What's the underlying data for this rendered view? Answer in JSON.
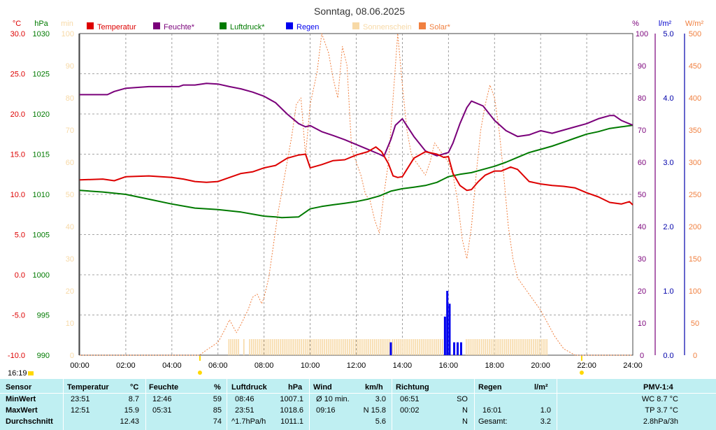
{
  "title": "Sonntag, 08.06.2025",
  "colors": {
    "temperature": "#dd0000",
    "humidity": "#7a007a",
    "pressure": "#007a00",
    "rain": "#0000ee",
    "sunshine": "#f7d9a6",
    "solar": "#f08040",
    "grid": "#888888",
    "stats_bg": "#bfeff2"
  },
  "legend": [
    "Temperatur",
    "Feuchte*",
    "Luftdruck*",
    "Regen",
    "Sonnenschein",
    "Solar*"
  ],
  "axes": {
    "temp": {
      "unit": "°C",
      "ticks": [
        "30.0",
        "25.0",
        "20.0",
        "15.0",
        "10.0",
        "5.0",
        "0.0",
        "-5.0",
        "-10.0"
      ],
      "range": [
        -10,
        30
      ]
    },
    "press": {
      "unit": "hPa",
      "ticks": [
        "1030",
        "1025",
        "1020",
        "1015",
        "1010",
        "1005",
        "1000",
        "995",
        "990"
      ],
      "range": [
        990,
        1030
      ]
    },
    "sun": {
      "unit": "min",
      "ticks": [
        "100",
        "90",
        "80",
        "70",
        "60",
        "50",
        "40",
        "30",
        "20",
        "10",
        "0"
      ],
      "range": [
        0,
        100
      ]
    },
    "hum": {
      "unit": "%",
      "ticks": [
        "100",
        "90",
        "80",
        "70",
        "60",
        "50",
        "40",
        "30",
        "20",
        "10",
        "0"
      ],
      "range": [
        0,
        100
      ]
    },
    "rain": {
      "unit": "l/m²",
      "ticks": [
        "5.0",
        "4.0",
        "3.0",
        "2.0",
        "1.0",
        "0.0"
      ],
      "range": [
        0,
        5
      ]
    },
    "solar": {
      "unit": "W/m²",
      "ticks": [
        "500",
        "450",
        "400",
        "350",
        "300",
        "250",
        "200",
        "150",
        "100",
        "50",
        "0"
      ],
      "range": [
        0,
        500
      ]
    },
    "x": {
      "ticks": [
        "00:00",
        "02:00",
        "04:00",
        "06:00",
        "08:00",
        "10:00",
        "12:00",
        "14:00",
        "16:00",
        "18:00",
        "20:00",
        "22:00",
        "24:00"
      ],
      "range": [
        0,
        24
      ]
    }
  },
  "sunrise": "05:13",
  "sunset": "21:47",
  "current_time": "16:19",
  "chart_data": {
    "type": "line",
    "title": "Sonntag, 08.06.2025",
    "x_unit": "hour",
    "xlim": [
      0,
      24
    ],
    "grid": true,
    "legend_position": "top",
    "series": [
      {
        "name": "Temperatur",
        "axis": "temp",
        "style": "line",
        "x": [
          0,
          1,
          1.5,
          2,
          3,
          4,
          4.5,
          5,
          5.5,
          6,
          6.5,
          7,
          7.5,
          8,
          8.5,
          9,
          9.5,
          9.8,
          10,
          10.5,
          11,
          11.5,
          12,
          12.5,
          12.85,
          13.1,
          13.4,
          13.6,
          13.8,
          14,
          14.5,
          15,
          15.5,
          15.8,
          16,
          16.2,
          16.5,
          16.8,
          17,
          17.3,
          17.6,
          18,
          18.3,
          18.7,
          19,
          19.5,
          20,
          20.5,
          21,
          21.5,
          22,
          22.5,
          23,
          23.5,
          23.85,
          24
        ],
        "y": [
          11.8,
          11.9,
          11.7,
          12.2,
          12.3,
          12.1,
          11.9,
          11.6,
          11.5,
          11.6,
          12.1,
          12.6,
          12.8,
          13.3,
          13.6,
          14.5,
          14.9,
          15.0,
          13.3,
          13.7,
          14.2,
          14.3,
          14.9,
          15.3,
          15.9,
          15.3,
          13.8,
          12.3,
          12.1,
          12.2,
          14.5,
          15.3,
          15.0,
          14.6,
          14.7,
          12.6,
          11.1,
          10.5,
          10.6,
          11.6,
          12.4,
          12.9,
          12.9,
          13.4,
          13.1,
          11.6,
          11.3,
          11.1,
          11.0,
          10.8,
          10.2,
          9.7,
          9.0,
          8.8,
          9.1,
          8.7
        ]
      },
      {
        "name": "Feuchte*",
        "axis": "hum",
        "style": "line",
        "x": [
          0,
          1.2,
          1.5,
          2,
          3,
          4.3,
          4.5,
          5,
          5.5,
          6,
          6.5,
          7,
          7.5,
          8,
          8.5,
          9,
          9.5,
          9.8,
          10,
          10.5,
          11,
          11.5,
          12,
          12.5,
          13,
          13.2,
          13.5,
          13.7,
          14,
          14.5,
          15,
          15.5,
          16,
          16.2,
          16.5,
          16.8,
          17,
          17.5,
          18,
          18.5,
          19,
          19.5,
          20,
          20.5,
          21,
          21.5,
          22,
          22.5,
          23,
          23.2,
          23.5,
          24
        ],
        "y": [
          81,
          81,
          82,
          83,
          83.5,
          83.5,
          84,
          84,
          84.5,
          84.3,
          83.5,
          82.8,
          81.8,
          80.5,
          78.5,
          75,
          72,
          71,
          71.4,
          69.5,
          68.3,
          67,
          65.5,
          64,
          62.5,
          61.8,
          67,
          71.5,
          73.5,
          68,
          63.5,
          62,
          63,
          66,
          72,
          77,
          79,
          77.5,
          73,
          69.8,
          68,
          68.5,
          69.8,
          69,
          70,
          71,
          72,
          73.5,
          74.5,
          74.5,
          73,
          71.5
        ]
      },
      {
        "name": "Luftdruck*",
        "axis": "press",
        "style": "line",
        "x": [
          0,
          1,
          2,
          3,
          4,
          5,
          6,
          7,
          8,
          8.5,
          8.77,
          9.5,
          10,
          10.5,
          11,
          11.5,
          12,
          12.5,
          13,
          13.5,
          14,
          14.5,
          15,
          15.5,
          16,
          16.5,
          17,
          17.5,
          18,
          18.5,
          19,
          19.5,
          20,
          20.5,
          21,
          21.5,
          22,
          22.5,
          23,
          23.5,
          24
        ],
        "y": [
          1010.5,
          1010.3,
          1010.0,
          1009.4,
          1008.8,
          1008.3,
          1008.1,
          1007.8,
          1007.3,
          1007.2,
          1007.1,
          1007.2,
          1008.2,
          1008.5,
          1008.7,
          1008.9,
          1009.1,
          1009.4,
          1009.8,
          1010.4,
          1010.7,
          1010.9,
          1011.1,
          1011.5,
          1012.2,
          1012.5,
          1012.7,
          1013.1,
          1013.5,
          1014.0,
          1014.6,
          1015.2,
          1015.6,
          1016.0,
          1016.5,
          1017.0,
          1017.5,
          1017.8,
          1018.2,
          1018.4,
          1018.6
        ]
      },
      {
        "name": "Solar*",
        "axis": "solar",
        "style": "dashed",
        "x": [
          0,
          5.2,
          5.5,
          6,
          6.3,
          6.5,
          6.8,
          7,
          7.3,
          7.5,
          7.7,
          7.9,
          8,
          8.2,
          8.4,
          8.6,
          8.8,
          9,
          9.2,
          9.4,
          9.6,
          9.8,
          10,
          10.3,
          10.5,
          10.8,
          11,
          11.2,
          11.4,
          11.6,
          11.8,
          12,
          12.2,
          12.4,
          12.6,
          12.8,
          13,
          13.2,
          13.4,
          13.6,
          13.8,
          14,
          14.2,
          14.4,
          14.6,
          14.8,
          15,
          15.2,
          15.4,
          15.6,
          15.8,
          16,
          16.2,
          16.4,
          16.6,
          16.8,
          17,
          17.2,
          17.4,
          17.6,
          17.8,
          18,
          18.2,
          18.4,
          18.6,
          18.8,
          19,
          19.2,
          19.4,
          19.6,
          19.8,
          20,
          20.3,
          20.6,
          21,
          21.5,
          21.8,
          24
        ],
        "y": [
          0,
          0,
          8,
          20,
          40,
          55,
          35,
          48,
          70,
          90,
          95,
          80,
          90,
          120,
          170,
          220,
          260,
          300,
          340,
          390,
          400,
          310,
          390,
          440,
          500,
          470,
          430,
          400,
          480,
          450,
          320,
          300,
          280,
          250,
          240,
          210,
          190,
          250,
          300,
          400,
          500,
          420,
          350,
          310,
          300,
          290,
          280,
          300,
          330,
          320,
          310,
          300,
          280,
          240,
          180,
          150,
          200,
          280,
          350,
          390,
          420,
          400,
          350,
          280,
          200,
          150,
          120,
          110,
          100,
          90,
          80,
          70,
          50,
          30,
          10,
          0,
          0,
          0
        ]
      },
      {
        "name": "Regen",
        "axis": "rain",
        "style": "bar",
        "x": [
          13.5,
          15.85,
          15.95,
          16.05,
          16.25,
          16.4,
          16.55
        ],
        "y": [
          0.2,
          0.6,
          1.0,
          0.8,
          0.2,
          0.2,
          0.2
        ]
      },
      {
        "name": "Sonnenschein",
        "axis": "sun",
        "style": "bar",
        "x_ranges": [
          [
            6.45,
            6.9
          ],
          [
            7.1,
            7.15
          ],
          [
            7.35,
            13.45
          ],
          [
            13.55,
            15.75
          ],
          [
            16.75,
            20.3
          ]
        ],
        "y": 5
      }
    ]
  },
  "stats": {
    "headers": {
      "sensor": "Sensor",
      "temp": "Temperatur",
      "temp_unit": "°C",
      "hum": "Feuchte",
      "hum_unit": "%",
      "press": "Luftdruck",
      "press_unit": "hPa",
      "wind": "Wind",
      "wind_unit": "km/h",
      "dir": "Richtung",
      "rain": "Regen",
      "rain_unit": "l/m²",
      "pmv": "PMV-1:4"
    },
    "rows": [
      {
        "label": "MinWert",
        "temp_time": "23:51",
        "temp_val": "8.7",
        "hum_time": "12:46",
        "hum_val": "59",
        "press_time": "08:46",
        "press_val": "1007.1",
        "wind_time": "Ø 10 min.",
        "wind_val": "3.0",
        "dir_time": "06:51",
        "dir_val": "SO",
        "rain_time": "",
        "rain_val": "",
        "pmv": "WC 8.7 °C"
      },
      {
        "label": "MaxWert",
        "temp_time": "12:51",
        "temp_val": "15.9",
        "hum_time": "05:31",
        "hum_val": "85",
        "press_time": "23:51",
        "press_val": "1018.6",
        "wind_time": "09:16",
        "wind_val": "N 15.8",
        "dir_time": "00:02",
        "dir_val": "N",
        "rain_time": "16:01",
        "rain_val": "1.0",
        "pmv": "TP 3.7 °C"
      },
      {
        "label": "Durchschnitt",
        "temp_time": "",
        "temp_val": "12.43",
        "hum_time": "",
        "hum_val": "74",
        "press_time": "^1.7hPa/h",
        "press_val": "1011.1",
        "wind_time": "",
        "wind_val": "5.6",
        "dir_time": "",
        "dir_val": "N",
        "rain_time": "Gesamt:",
        "rain_val": "3.2",
        "pmv": "2.8hPa/3h"
      }
    ]
  }
}
